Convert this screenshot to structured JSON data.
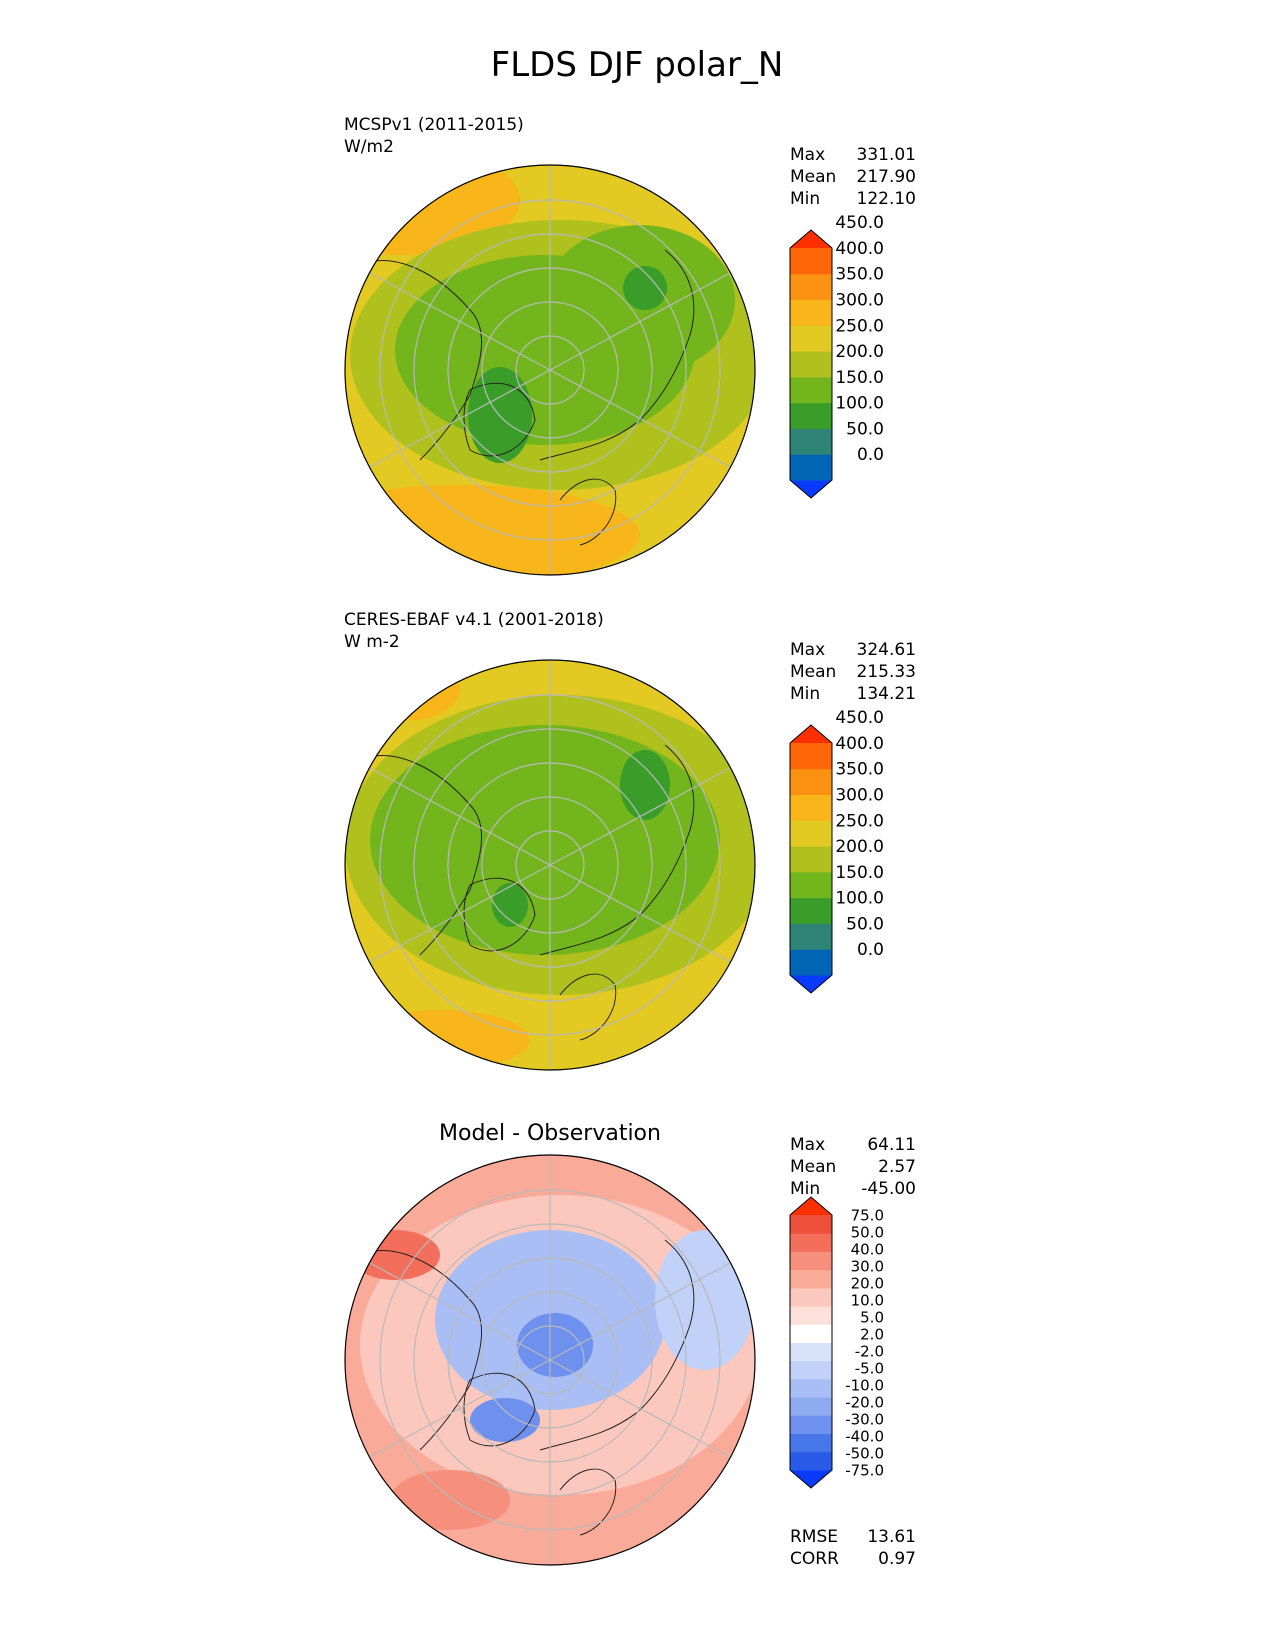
{
  "figure": {
    "title": "FLDS DJF polar_N"
  },
  "colors": {
    "abs_levels": [
      "#0b3aff",
      "#0065b4",
      "#2f8478",
      "#3a9d2a",
      "#73b51c",
      "#b0c11e",
      "#e3ca22",
      "#f8b61a",
      "#fb9212",
      "#fe6608",
      "#ff3000"
    ],
    "diff_levels": [
      "#0b3aff",
      "#2a5ae8",
      "#4776ea",
      "#6e90ef",
      "#8eaaf1",
      "#a9bef5",
      "#c2d1f8",
      "#d8e2fb",
      "#ffffff",
      "#fde0da",
      "#fcc7bc",
      "#faaa99",
      "#f68f7c",
      "#f36f5c",
      "#ee4f3b",
      "#ff3000"
    ],
    "coast": "#222222",
    "grid": "#b9b9b9"
  },
  "chart_data": [
    {
      "type": "heatmap",
      "projection": "polar stereographic north",
      "title": "MCSPv1 (2011-2015)",
      "units": "W/m2",
      "stats": [
        {
          "label": "Max",
          "value": "331.01"
        },
        {
          "label": "Mean",
          "value": "217.90"
        },
        {
          "label": "Min",
          "value": "122.10"
        }
      ],
      "colorbar": {
        "ticks": [
          "0.0",
          "50.0",
          "100.0",
          "150.0",
          "200.0",
          "250.0",
          "300.0",
          "350.0",
          "400.0",
          "450.0"
        ],
        "extend": "both"
      },
      "grid": true
    },
    {
      "type": "heatmap",
      "projection": "polar stereographic north",
      "title": "CERES-EBAF v4.1 (2001-2018)",
      "units": "W m-2",
      "stats": [
        {
          "label": "Max",
          "value": "324.61"
        },
        {
          "label": "Mean",
          "value": "215.33"
        },
        {
          "label": "Min",
          "value": "134.21"
        }
      ],
      "colorbar": {
        "ticks": [
          "0.0",
          "50.0",
          "100.0",
          "150.0",
          "200.0",
          "250.0",
          "300.0",
          "350.0",
          "400.0",
          "450.0"
        ],
        "extend": "both"
      },
      "grid": true
    },
    {
      "type": "heatmap",
      "projection": "polar stereographic north",
      "title": "Model - Observation",
      "stats": [
        {
          "label": "Max",
          "value": "64.11"
        },
        {
          "label": "Mean",
          "value": "2.57"
        },
        {
          "label": "Min",
          "value": "-45.00"
        }
      ],
      "colorbar": {
        "ticks": [
          "-75.0",
          "-50.0",
          "-40.0",
          "-30.0",
          "-20.0",
          "-10.0",
          "-5.0",
          "-2.0",
          "2.0",
          "5.0",
          "10.0",
          "20.0",
          "30.0",
          "40.0",
          "50.0",
          "75.0"
        ],
        "extend": "both"
      },
      "metrics": [
        {
          "label": "RMSE",
          "value": "13.61"
        },
        {
          "label": "CORR",
          "value": "0.97"
        }
      ],
      "grid": true
    }
  ]
}
